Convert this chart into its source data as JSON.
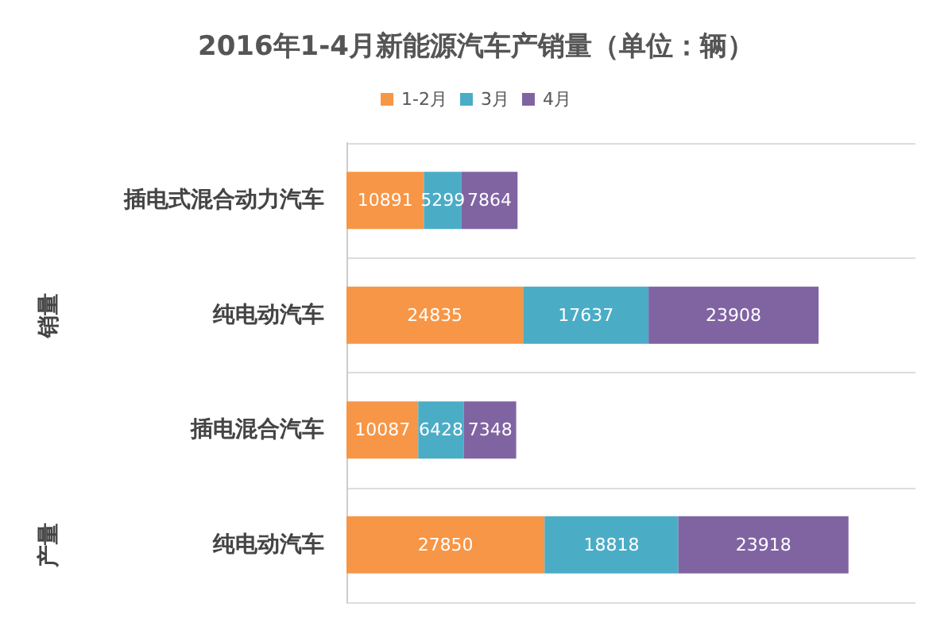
{
  "chart_data": {
    "type": "bar",
    "orientation": "horizontal",
    "stacked": true,
    "title": "2016年1-4月新能源汽车产销量（单位：辆）",
    "categories": [
      "插电式混合动力汽车",
      "纯电动汽车",
      "插电混合汽车",
      "纯电动汽车"
    ],
    "series": [
      {
        "name": "1-2月",
        "color": "#f79646",
        "values": [
          10891,
          24835,
          10087,
          27850
        ]
      },
      {
        "name": "3月",
        "color": "#4bacc6",
        "values": [
          5299,
          17637,
          6428,
          18818
        ]
      },
      {
        "name": "4月",
        "color": "#8064a2",
        "values": [
          7864,
          23908,
          7348,
          23918
        ]
      }
    ],
    "annotations": [
      "销量",
      "产量"
    ],
    "data_labels": true,
    "legend": "top",
    "grid": "y"
  }
}
